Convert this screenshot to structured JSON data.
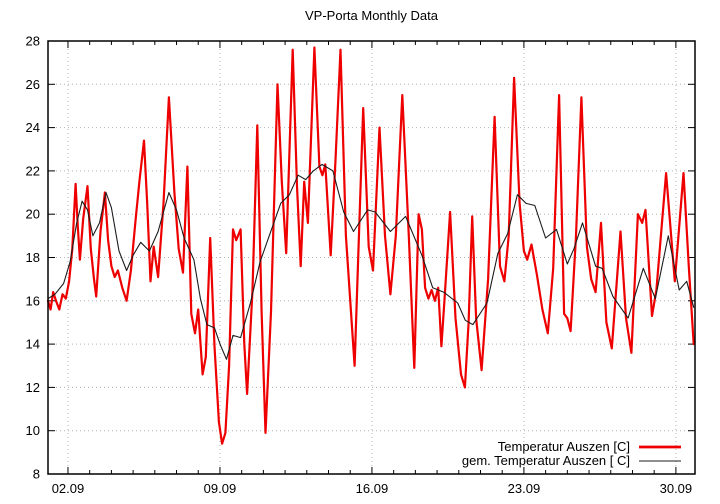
{
  "chart_data": {
    "type": "line",
    "title": "VP-Porta Monthly Data",
    "xlabel": "",
    "ylabel": "",
    "grid": "dotted",
    "legend_position": "inside bottom-right",
    "x_axis": {
      "unit": "date (day.month)",
      "major_tick_labels": [
        "02.09",
        "09.09",
        "16.09",
        "23.09",
        "30.09"
      ],
      "major_tick_days": [
        2,
        9,
        16,
        23,
        30
      ],
      "minor_tick_interval_days": 1,
      "range_days": [
        1.08,
        30.88
      ]
    },
    "y_axis": {
      "tick_labels": [
        "8",
        "10",
        "12",
        "14",
        "16",
        "18",
        "20",
        "22",
        "24",
        "26",
        "28"
      ],
      "tick_values": [
        8,
        10,
        12,
        14,
        16,
        18,
        20,
        22,
        24,
        26,
        28
      ],
      "range": [
        8,
        28
      ]
    },
    "series": [
      {
        "name": "Temperatur Auszen [C]",
        "color": "#ee0000",
        "stroke_width": 2.2,
        "points": [
          [
            1.08,
            16.0
          ],
          [
            1.2,
            15.6
          ],
          [
            1.32,
            16.4
          ],
          [
            1.45,
            16.0
          ],
          [
            1.6,
            15.6
          ],
          [
            1.75,
            16.3
          ],
          [
            1.9,
            16.1
          ],
          [
            2.05,
            16.9
          ],
          [
            2.2,
            18.4
          ],
          [
            2.35,
            21.4
          ],
          [
            2.45,
            19.5
          ],
          [
            2.55,
            17.9
          ],
          [
            2.7,
            19.8
          ],
          [
            2.9,
            21.3
          ],
          [
            3.05,
            18.4
          ],
          [
            3.2,
            17.0
          ],
          [
            3.3,
            16.2
          ],
          [
            3.5,
            19.2
          ],
          [
            3.7,
            21.0
          ],
          [
            3.85,
            18.8
          ],
          [
            4.0,
            17.6
          ],
          [
            4.15,
            17.1
          ],
          [
            4.3,
            17.4
          ],
          [
            4.5,
            16.6
          ],
          [
            4.7,
            16.0
          ],
          [
            4.9,
            17.4
          ],
          [
            5.1,
            19.6
          ],
          [
            5.3,
            21.6
          ],
          [
            5.5,
            23.4
          ],
          [
            5.65,
            20.5
          ],
          [
            5.8,
            16.9
          ],
          [
            5.95,
            18.5
          ],
          [
            6.15,
            17.1
          ],
          [
            6.4,
            20.5
          ],
          [
            6.65,
            25.4
          ],
          [
            6.9,
            21.0
          ],
          [
            7.1,
            18.4
          ],
          [
            7.3,
            17.3
          ],
          [
            7.5,
            22.2
          ],
          [
            7.68,
            15.4
          ],
          [
            7.85,
            14.5
          ],
          [
            8.0,
            15.6
          ],
          [
            8.2,
            12.6
          ],
          [
            8.35,
            13.4
          ],
          [
            8.55,
            18.9
          ],
          [
            8.75,
            13.9
          ],
          [
            8.95,
            10.4
          ],
          [
            9.1,
            9.4
          ],
          [
            9.25,
            9.9
          ],
          [
            9.42,
            13.0
          ],
          [
            9.6,
            19.3
          ],
          [
            9.75,
            18.8
          ],
          [
            9.95,
            19.3
          ],
          [
            10.12,
            14.0
          ],
          [
            10.25,
            11.7
          ],
          [
            10.5,
            16.5
          ],
          [
            10.72,
            24.1
          ],
          [
            10.92,
            15.5
          ],
          [
            11.1,
            9.9
          ],
          [
            11.35,
            15.5
          ],
          [
            11.65,
            26.0
          ],
          [
            11.85,
            21.5
          ],
          [
            12.05,
            18.2
          ],
          [
            12.35,
            27.6
          ],
          [
            12.55,
            21.3
          ],
          [
            12.72,
            17.6
          ],
          [
            12.88,
            21.5
          ],
          [
            13.05,
            19.6
          ],
          [
            13.35,
            27.7
          ],
          [
            13.58,
            22.2
          ],
          [
            13.72,
            21.8
          ],
          [
            13.85,
            22.3
          ],
          [
            14.1,
            18.1
          ],
          [
            14.32,
            22.5
          ],
          [
            14.55,
            27.6
          ],
          [
            14.8,
            19.0
          ],
          [
            15.2,
            13.0
          ],
          [
            15.6,
            24.9
          ],
          [
            15.85,
            18.5
          ],
          [
            16.05,
            17.4
          ],
          [
            16.35,
            24.0
          ],
          [
            16.6,
            19.0
          ],
          [
            16.85,
            16.3
          ],
          [
            17.1,
            19.0
          ],
          [
            17.4,
            25.5
          ],
          [
            17.7,
            19.0
          ],
          [
            17.95,
            12.9
          ],
          [
            18.15,
            20.0
          ],
          [
            18.3,
            19.3
          ],
          [
            18.45,
            16.6
          ],
          [
            18.6,
            16.1
          ],
          [
            18.75,
            16.5
          ],
          [
            18.9,
            16.0
          ],
          [
            19.05,
            16.6
          ],
          [
            19.2,
            13.9
          ],
          [
            19.35,
            16.2
          ],
          [
            19.6,
            20.1
          ],
          [
            19.85,
            15.2
          ],
          [
            20.1,
            12.6
          ],
          [
            20.28,
            12.0
          ],
          [
            20.45,
            15.0
          ],
          [
            20.62,
            19.9
          ],
          [
            20.8,
            15.2
          ],
          [
            21.05,
            12.8
          ],
          [
            21.35,
            17.0
          ],
          [
            21.65,
            24.5
          ],
          [
            21.9,
            17.6
          ],
          [
            22.1,
            16.9
          ],
          [
            22.3,
            19.0
          ],
          [
            22.55,
            26.3
          ],
          [
            22.8,
            20.5
          ],
          [
            23.0,
            18.3
          ],
          [
            23.15,
            17.9
          ],
          [
            23.35,
            18.6
          ],
          [
            23.6,
            17.2
          ],
          [
            23.85,
            15.6
          ],
          [
            24.1,
            14.5
          ],
          [
            24.35,
            17.5
          ],
          [
            24.62,
            25.5
          ],
          [
            24.85,
            15.4
          ],
          [
            25.0,
            15.2
          ],
          [
            25.15,
            14.6
          ],
          [
            25.4,
            19.0
          ],
          [
            25.65,
            25.4
          ],
          [
            25.9,
            18.5
          ],
          [
            26.1,
            17.0
          ],
          [
            26.3,
            16.4
          ],
          [
            26.55,
            19.6
          ],
          [
            26.8,
            15.0
          ],
          [
            27.05,
            13.8
          ],
          [
            27.45,
            19.2
          ],
          [
            27.7,
            15.2
          ],
          [
            27.95,
            13.6
          ],
          [
            28.25,
            20.0
          ],
          [
            28.45,
            19.6
          ],
          [
            28.6,
            20.2
          ],
          [
            28.9,
            15.3
          ],
          [
            29.1,
            16.5
          ],
          [
            29.55,
            21.9
          ],
          [
            29.95,
            16.9
          ],
          [
            30.35,
            21.9
          ],
          [
            30.6,
            17.5
          ],
          [
            30.82,
            14.0
          ]
        ]
      },
      {
        "name": "gem. Temperatur Auszen [ C]",
        "color": "#1c1c1c",
        "stroke_width": 1.1,
        "points": [
          [
            1.08,
            16.1
          ],
          [
            1.4,
            16.3
          ],
          [
            1.8,
            16.8
          ],
          [
            2.1,
            17.8
          ],
          [
            2.4,
            19.6
          ],
          [
            2.65,
            20.6
          ],
          [
            2.9,
            20.2
          ],
          [
            3.15,
            19.0
          ],
          [
            3.45,
            19.6
          ],
          [
            3.75,
            21.0
          ],
          [
            4.0,
            20.3
          ],
          [
            4.35,
            18.3
          ],
          [
            4.7,
            17.4
          ],
          [
            5.0,
            18.1
          ],
          [
            5.35,
            18.7
          ],
          [
            5.75,
            18.3
          ],
          [
            6.15,
            19.2
          ],
          [
            6.65,
            21.0
          ],
          [
            7.0,
            20.2
          ],
          [
            7.35,
            18.9
          ],
          [
            7.8,
            17.9
          ],
          [
            8.1,
            16.1
          ],
          [
            8.4,
            14.9
          ],
          [
            8.75,
            14.75
          ],
          [
            9.0,
            14.0
          ],
          [
            9.3,
            13.3
          ],
          [
            9.6,
            14.4
          ],
          [
            9.95,
            14.3
          ],
          [
            10.4,
            15.9
          ],
          [
            10.85,
            17.8
          ],
          [
            11.2,
            18.8
          ],
          [
            11.8,
            20.5
          ],
          [
            12.2,
            20.9
          ],
          [
            12.6,
            21.8
          ],
          [
            12.95,
            21.6
          ],
          [
            13.3,
            22.0
          ],
          [
            13.7,
            22.3
          ],
          [
            14.2,
            22.0
          ],
          [
            14.7,
            20.1
          ],
          [
            15.15,
            19.2
          ],
          [
            15.8,
            20.2
          ],
          [
            16.15,
            20.1
          ],
          [
            16.85,
            19.2
          ],
          [
            17.55,
            19.9
          ],
          [
            18.3,
            18.1
          ],
          [
            18.8,
            16.6
          ],
          [
            19.3,
            16.4
          ],
          [
            19.95,
            15.9
          ],
          [
            20.3,
            15.1
          ],
          [
            20.65,
            14.9
          ],
          [
            21.3,
            15.9
          ],
          [
            21.8,
            18.2
          ],
          [
            22.25,
            19.1
          ],
          [
            22.7,
            20.9
          ],
          [
            23.1,
            20.5
          ],
          [
            23.5,
            20.4
          ],
          [
            24.0,
            18.9
          ],
          [
            24.5,
            19.3
          ],
          [
            25.0,
            17.7
          ],
          [
            25.3,
            18.4
          ],
          [
            25.7,
            19.6
          ],
          [
            26.3,
            17.6
          ],
          [
            26.6,
            17.5
          ],
          [
            27.1,
            16.2
          ],
          [
            27.8,
            15.2
          ],
          [
            28.5,
            17.5
          ],
          [
            29.05,
            16.1
          ],
          [
            29.65,
            19.0
          ],
          [
            30.15,
            16.5
          ],
          [
            30.5,
            16.9
          ],
          [
            30.82,
            15.7
          ]
        ]
      }
    ],
    "colors": {
      "background": "#ffffff",
      "border": "#000000",
      "grid": "#b3b3b3",
      "text": "#000000"
    }
  }
}
